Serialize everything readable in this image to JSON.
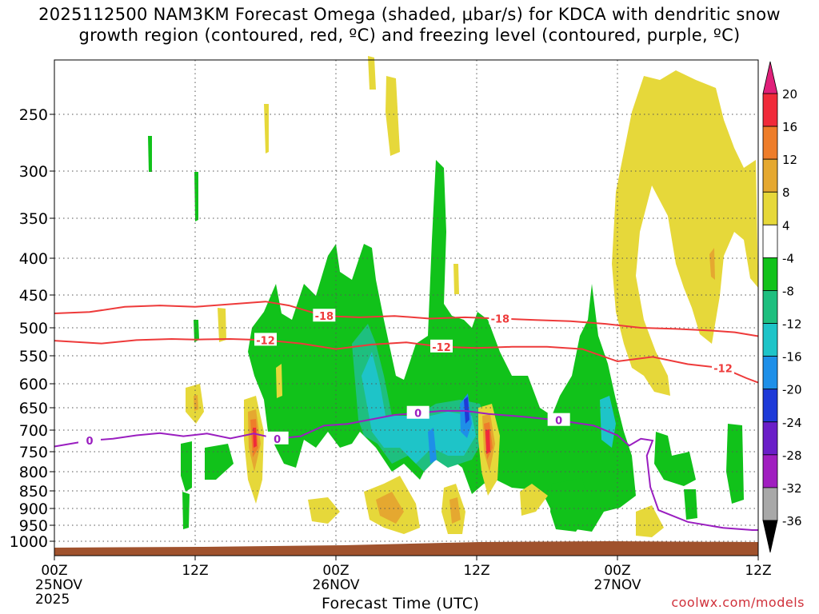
{
  "title_line1": "2025112500 NAM3KM Forecast Omega (shaded, μbar/s) for KDCA with dendritic snow",
  "title_line2": "growth region (contoured, red, ºC) and freezing level (contoured, purple, ºC)",
  "credit": "coolwx.com/models",
  "chart_data": {
    "type": "contour-time-height",
    "title": "2025112500 NAM3KM Forecast Omega (shaded, μbar/s) for KDCA with dendritic snow growth region (contoured, red, ºC) and freezing level (contoured, purple, ºC)",
    "xlabel": "Forecast Time (UTC)",
    "ylabel": "",
    "xlim_hours": [
      0,
      60
    ],
    "ylim_hpa": [
      1000,
      200
    ],
    "y_ticks": [
      250,
      300,
      350,
      400,
      450,
      500,
      550,
      600,
      650,
      700,
      750,
      800,
      850,
      900,
      950,
      1000
    ],
    "x_ticks": [
      {
        "hour": 0,
        "lines": [
          "00Z",
          "25NOV",
          "2025"
        ]
      },
      {
        "hour": 12,
        "lines": [
          "12Z"
        ]
      },
      {
        "hour": 24,
        "lines": [
          "00Z",
          "26NOV"
        ]
      },
      {
        "hour": 36,
        "lines": [
          "12Z"
        ]
      },
      {
        "hour": 48,
        "lines": [
          "00Z",
          "27NOV"
        ]
      },
      {
        "hour": 60,
        "lines": [
          "12Z"
        ]
      }
    ],
    "colorbar": {
      "labels": [
        "20",
        "16",
        "12",
        "8",
        "4",
        "-4",
        "-8",
        "-12",
        "-16",
        "-20",
        "-24",
        "-28",
        "-32",
        "-36"
      ],
      "bands": [
        {
          "lo": 16,
          "hi": 20,
          "color": "#f02a3a"
        },
        {
          "lo": 12,
          "hi": 16,
          "color": "#ee7d2a"
        },
        {
          "lo": 8,
          "hi": 12,
          "color": "#e5a830"
        },
        {
          "lo": 4,
          "hi": 8,
          "color": "#e6d83a"
        },
        {
          "lo": -4,
          "hi": 4,
          "color": "#ffffff"
        },
        {
          "lo": -8,
          "hi": -4,
          "color": "#11c21a"
        },
        {
          "lo": -12,
          "hi": -8,
          "color": "#1ebf7f"
        },
        {
          "lo": -16,
          "hi": -12,
          "color": "#1ec4c8"
        },
        {
          "lo": -20,
          "hi": -16,
          "color": "#1e8fe8"
        },
        {
          "lo": -24,
          "hi": -20,
          "color": "#1e3ad8"
        },
        {
          "lo": -28,
          "hi": -24,
          "color": "#6a1ec8"
        },
        {
          "lo": -32,
          "hi": -28,
          "color": "#a01ec0"
        },
        {
          "lo": -36,
          "hi": -32,
          "color": "#a8a8a8"
        }
      ],
      "top_arrow_color": "#e0207a",
      "bottom_arrow_color": "#000000"
    },
    "series": [
      {
        "name": "-18 isotherm",
        "color": "#ee3a3a",
        "label": "-18",
        "points": [
          [
            0,
            478
          ],
          [
            3,
            476
          ],
          [
            6,
            468
          ],
          [
            9,
            466
          ],
          [
            12,
            468
          ],
          [
            15,
            464
          ],
          [
            18,
            460
          ],
          [
            20,
            466
          ],
          [
            23,
            482
          ],
          [
            26,
            484
          ],
          [
            29,
            482
          ],
          [
            32,
            486
          ],
          [
            35,
            484
          ],
          [
            38,
            486
          ],
          [
            41,
            488
          ],
          [
            44,
            490
          ],
          [
            47,
            494
          ],
          [
            50,
            500
          ],
          [
            53,
            502
          ],
          [
            56,
            505
          ],
          [
            58,
            508
          ],
          [
            60,
            515
          ]
        ]
      },
      {
        "name": "-12 isotherm",
        "color": "#ee3a3a",
        "label": "-12",
        "points": [
          [
            0,
            523
          ],
          [
            4,
            528
          ],
          [
            7,
            522
          ],
          [
            10,
            520
          ],
          [
            12,
            521
          ],
          [
            15,
            520
          ],
          [
            18,
            522
          ],
          [
            21,
            528
          ],
          [
            24,
            538
          ],
          [
            27,
            530
          ],
          [
            30,
            526
          ],
          [
            33,
            534
          ],
          [
            36,
            536
          ],
          [
            39,
            534
          ],
          [
            42,
            534
          ],
          [
            45,
            538
          ],
          [
            48,
            560
          ],
          [
            51,
            552
          ],
          [
            54,
            565
          ],
          [
            57,
            572
          ],
          [
            59,
            590
          ],
          [
            60,
            598
          ]
        ]
      },
      {
        "name": "0 freezing level",
        "color": "#9a1ec0",
        "label": "0",
        "points": [
          [
            0,
            738
          ],
          [
            3,
            724
          ],
          [
            5,
            720
          ],
          [
            7,
            712
          ],
          [
            9,
            707
          ],
          [
            11,
            714
          ],
          [
            13,
            708
          ],
          [
            15,
            719
          ],
          [
            17,
            708
          ],
          [
            19,
            720
          ],
          [
            21,
            714
          ],
          [
            23,
            690
          ],
          [
            25,
            686
          ],
          [
            27,
            676
          ],
          [
            29,
            666
          ],
          [
            31,
            662
          ],
          [
            33,
            657
          ],
          [
            35,
            657
          ],
          [
            37,
            664
          ],
          [
            40,
            670
          ],
          [
            43,
            678
          ],
          [
            46,
            690
          ],
          [
            48,
            712
          ],
          [
            49,
            736
          ],
          [
            50,
            720
          ],
          [
            51,
            724
          ],
          [
            50.5,
            760
          ],
          [
            50.8,
            840
          ],
          [
            51.5,
            905
          ],
          [
            54,
            940
          ],
          [
            57,
            958
          ],
          [
            59.5,
            965
          ],
          [
            60,
            965
          ]
        ]
      }
    ],
    "omega_regions_note": "Shaded omega: green negative (ascent) cells between 400-950 hPa with local minima to -20 near 26/06Z-26/12Z; yellow/orange positive (descent) cells, strongest near 25/17Z and 26/13Z (16-20); broad yellow 4-8 region above 450 hPa after 27/00Z."
  }
}
